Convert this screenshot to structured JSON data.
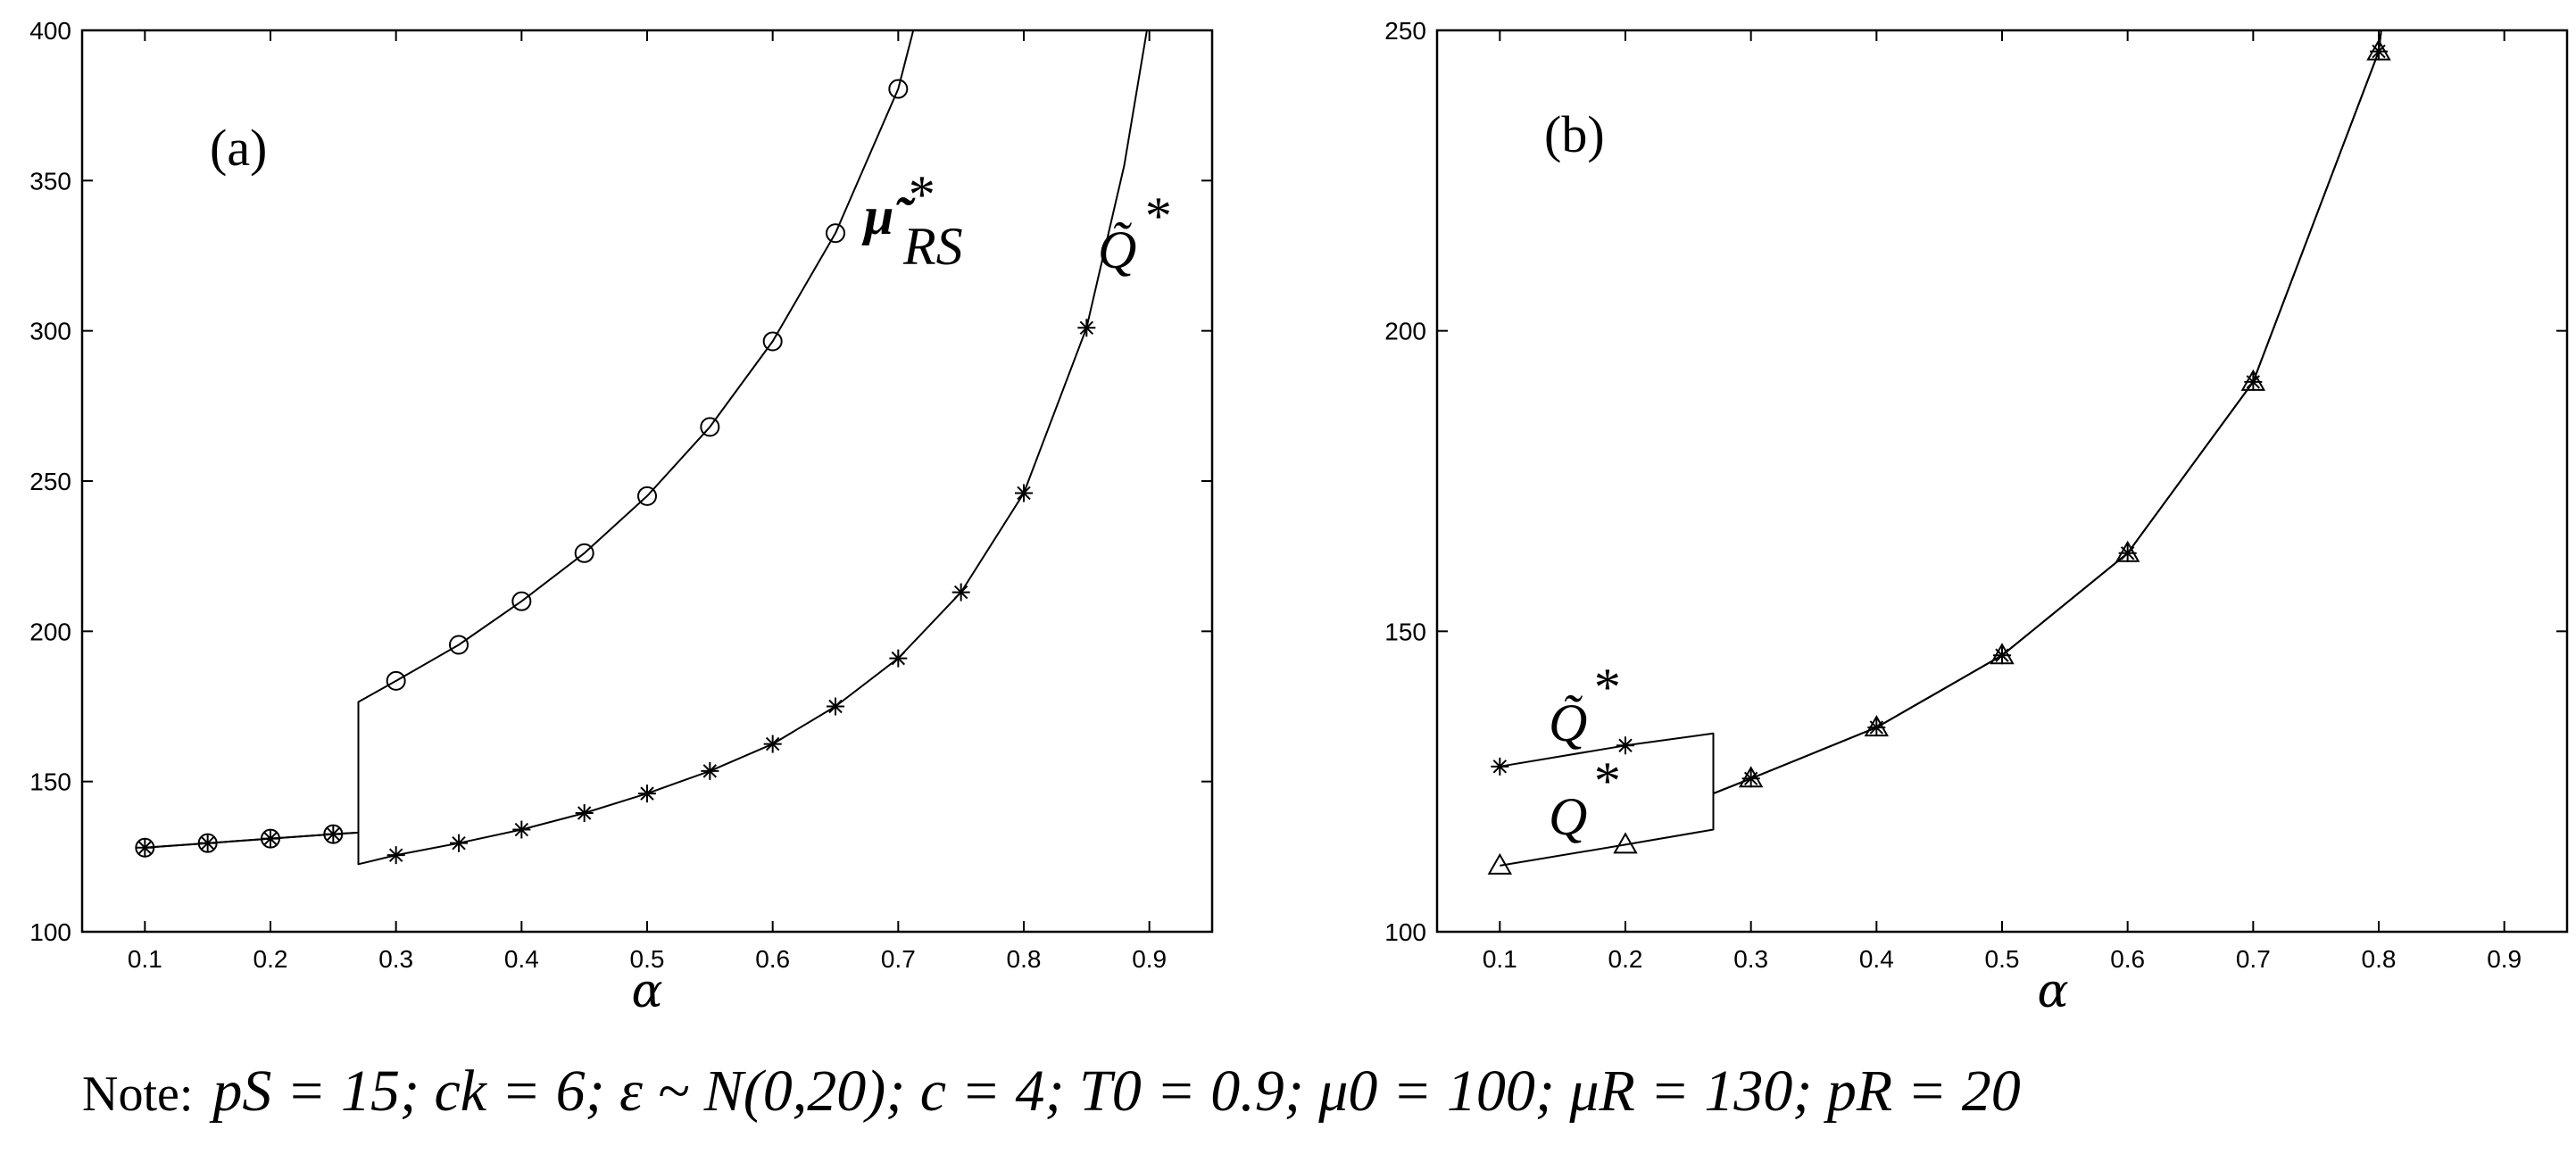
{
  "chart_data": [
    {
      "type": "line",
      "panel_label": "(a)",
      "xlabel": "α",
      "ylabel": "",
      "xlim": [
        0.05,
        0.95
      ],
      "ylim": [
        100,
        400
      ],
      "xticks": [
        0.1,
        0.2,
        0.3,
        0.4,
        0.5,
        0.6,
        0.7,
        0.8,
        0.9
      ],
      "yticks": [
        100,
        150,
        200,
        250,
        300,
        350,
        400
      ],
      "grid": false,
      "series": [
        {
          "name": "μ̃*_RS",
          "marker": "circle",
          "curve": [
            [
              0.1,
              128
            ],
            [
              0.15,
              129.5
            ],
            [
              0.2,
              131
            ],
            [
              0.25,
              132.5
            ],
            [
              0.27,
              133
            ],
            [
              0.27,
              176.5
            ],
            [
              0.3,
              183.5
            ],
            [
              0.35,
              195.5
            ],
            [
              0.4,
              210
            ],
            [
              0.45,
              226
            ],
            [
              0.5,
              245
            ],
            [
              0.55,
              268
            ],
            [
              0.6,
              296.5
            ],
            [
              0.65,
              332.5
            ],
            [
              0.7,
              380.5
            ],
            [
              0.712,
              400
            ]
          ],
          "markers": [
            [
              0.1,
              128
            ],
            [
              0.15,
              129.5
            ],
            [
              0.2,
              131
            ],
            [
              0.25,
              132.5
            ],
            [
              0.3,
              183.5
            ],
            [
              0.35,
              195.5
            ],
            [
              0.4,
              210
            ],
            [
              0.45,
              226
            ],
            [
              0.5,
              245
            ],
            [
              0.55,
              268
            ],
            [
              0.6,
              296.5
            ],
            [
              0.65,
              332.5
            ],
            [
              0.7,
              380.5
            ]
          ]
        },
        {
          "name": "Q̃*",
          "marker": "asterisk",
          "curve": [
            [
              0.1,
              128
            ],
            [
              0.15,
              129.5
            ],
            [
              0.2,
              131
            ],
            [
              0.25,
              132.5
            ],
            [
              0.27,
              133
            ],
            [
              0.27,
              122.5
            ],
            [
              0.3,
              125.5
            ],
            [
              0.35,
              129.5
            ],
            [
              0.4,
              134
            ],
            [
              0.45,
              139.5
            ],
            [
              0.5,
              146
            ],
            [
              0.55,
              153.5
            ],
            [
              0.6,
              162.5
            ],
            [
              0.65,
              175
            ],
            [
              0.7,
              191
            ],
            [
              0.75,
              213
            ],
            [
              0.8,
              246
            ],
            [
              0.85,
              301
            ],
            [
              0.88,
              355
            ],
            [
              0.898,
              400
            ]
          ],
          "markers": [
            [
              0.1,
              128
            ],
            [
              0.15,
              129.5
            ],
            [
              0.2,
              131
            ],
            [
              0.25,
              132.5
            ],
            [
              0.3,
              125.5
            ],
            [
              0.35,
              129.5
            ],
            [
              0.4,
              134
            ],
            [
              0.45,
              139.5
            ],
            [
              0.5,
              146
            ],
            [
              0.55,
              153.5
            ],
            [
              0.6,
              162.5
            ],
            [
              0.65,
              175
            ],
            [
              0.7,
              191
            ],
            [
              0.75,
              213
            ],
            [
              0.8,
              246
            ],
            [
              0.85,
              301
            ]
          ]
        }
      ],
      "labels": [
        "μ̃",
        "RS",
        "*",
        "Q̃",
        "*"
      ]
    },
    {
      "type": "line",
      "panel_label": "(b)",
      "xlabel": "α",
      "ylabel": "",
      "xlim": [
        0.05,
        0.95
      ],
      "ylim": [
        100,
        250
      ],
      "xticks": [
        0.1,
        0.2,
        0.3,
        0.4,
        0.5,
        0.6,
        0.7,
        0.8,
        0.9
      ],
      "yticks": [
        100,
        150,
        200,
        250
      ],
      "grid": false,
      "series": [
        {
          "name": "Q̃*",
          "marker": "asterisk",
          "curve": [
            [
              0.1,
              127.5
            ],
            [
              0.2,
              131
            ],
            [
              0.27,
              133
            ],
            [
              0.27,
              123
            ],
            [
              0.3,
              125.5
            ],
            [
              0.4,
              134
            ],
            [
              0.5,
              146
            ],
            [
              0.6,
              163
            ],
            [
              0.7,
              191.5
            ],
            [
              0.8,
              246.5
            ],
            [
              0.802,
              250
            ]
          ],
          "markers": [
            [
              0.1,
              127.5
            ],
            [
              0.2,
              131
            ],
            [
              0.3,
              125.5
            ],
            [
              0.4,
              134
            ],
            [
              0.5,
              146
            ],
            [
              0.6,
              163
            ],
            [
              0.7,
              191.5
            ],
            [
              0.8,
              246.5
            ]
          ]
        },
        {
          "name": "Q*",
          "marker": "triangle",
          "curve": [
            [
              0.1,
              111
            ],
            [
              0.2,
              114.5
            ],
            [
              0.27,
              117
            ],
            [
              0.27,
              123
            ],
            [
              0.3,
              125.5
            ],
            [
              0.4,
              134
            ],
            [
              0.5,
              146
            ],
            [
              0.6,
              163
            ],
            [
              0.7,
              191.5
            ],
            [
              0.8,
              246.5
            ],
            [
              0.802,
              250
            ]
          ],
          "markers": [
            [
              0.1,
              111
            ],
            [
              0.2,
              114.5
            ],
            [
              0.3,
              125.5
            ],
            [
              0.4,
              134
            ],
            [
              0.5,
              146
            ],
            [
              0.6,
              163
            ],
            [
              0.7,
              191.5
            ],
            [
              0.8,
              246.5
            ]
          ]
        }
      ],
      "labels": [
        "Q̃",
        "*",
        "Q",
        "*"
      ]
    }
  ],
  "note": {
    "label": "Note:",
    "formula": "pS = 15; ck = 6; ε ~ N(0,20); c = 4; T0 = 0.9; μ0 = 100; μR = 130; pR = 20"
  }
}
